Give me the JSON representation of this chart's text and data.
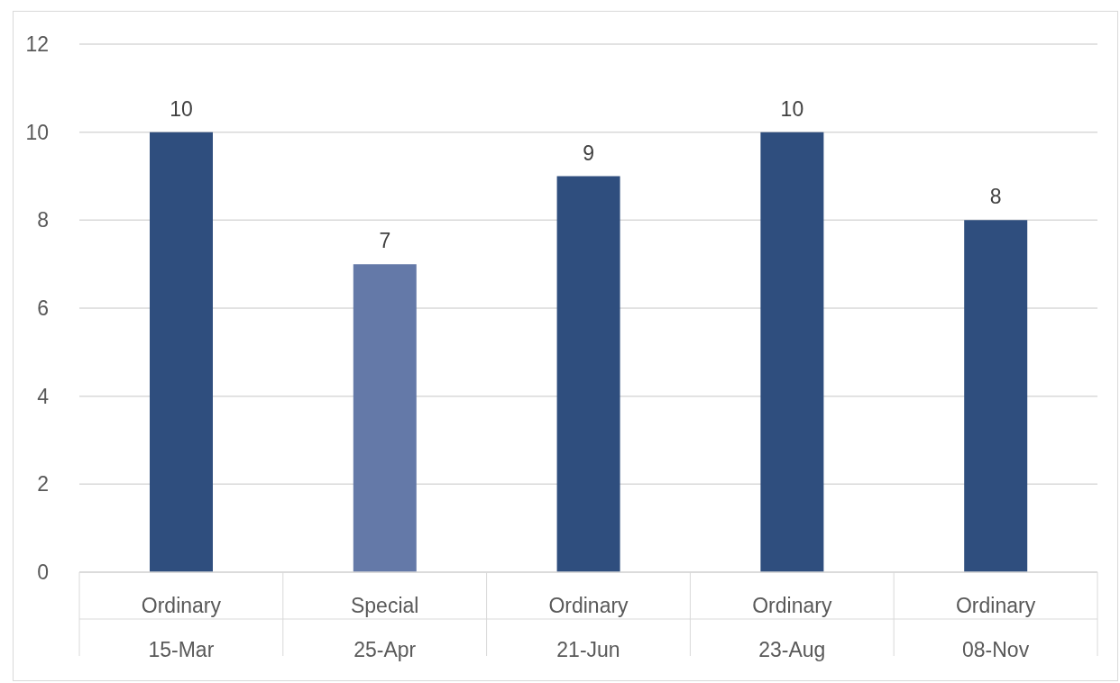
{
  "chart_data": {
    "type": "bar",
    "categories": [
      "Ordinary\n15-Mar",
      "Special\n25-Apr",
      "Ordinary\n21-Jun",
      "Ordinary\n23-Aug",
      "Ordinary\n08-Nov"
    ],
    "values": [
      10,
      7,
      9,
      10,
      8
    ],
    "colors": [
      "#2f4e7e",
      "#6479a8",
      "#2f4e7e",
      "#2f4e7e",
      "#2f4e7e"
    ],
    "ylim": [
      0,
      12
    ],
    "yticks": [
      0,
      2,
      4,
      6,
      8,
      10,
      12
    ],
    "grid": "y",
    "data_labels": true,
    "legend": false
  }
}
